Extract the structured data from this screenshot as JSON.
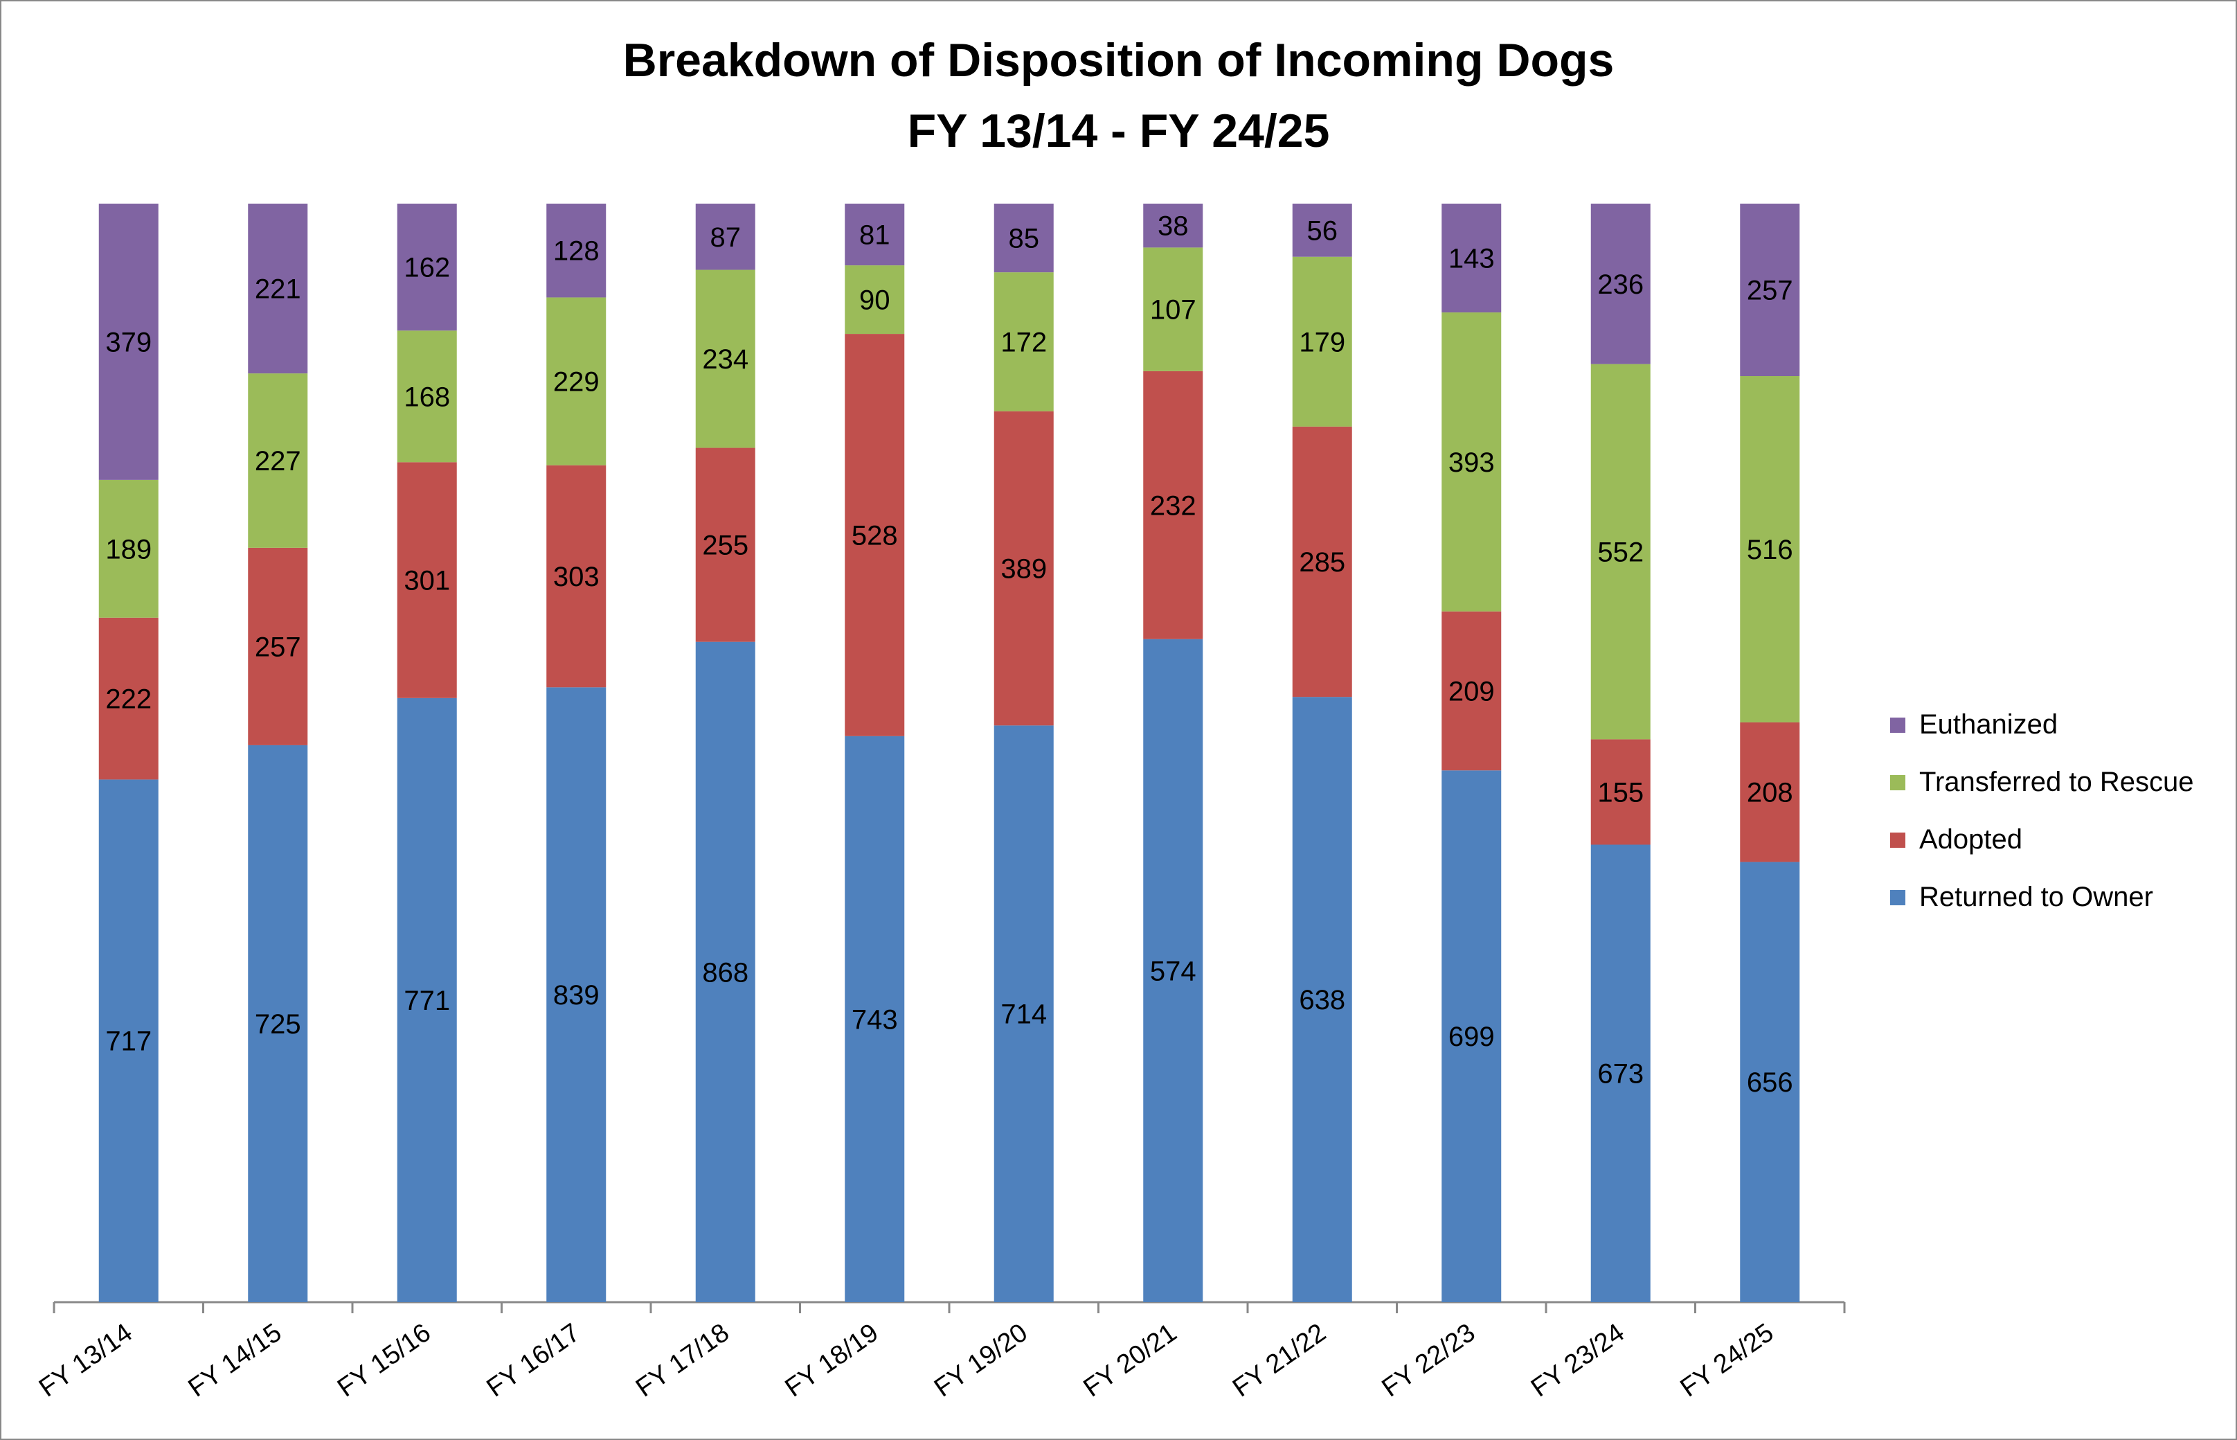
{
  "title": [
    "Breakdown of Disposition of Incoming Dogs",
    "FY 13/14 - FY 24/25"
  ],
  "chart_data": {
    "type": "bar",
    "stacked": true,
    "title": "Breakdown of Disposition of Incoming Dogs FY 13/14 - FY 24/25",
    "categories": [
      "FY 13/14",
      "FY 14/15",
      "FY 15/16",
      "FY 16/17",
      "FY 17/18",
      "FY 18/19",
      "FY 19/20",
      "FY 20/21",
      "FY 21/22",
      "FY 22/23",
      "FY 23/24",
      "FY 24/25"
    ],
    "series": [
      {
        "name": "Returned to Owner",
        "color": "#4F81BD",
        "values": [
          717,
          725,
          771,
          839,
          868,
          743,
          714,
          574,
          638,
          699,
          673,
          656
        ]
      },
      {
        "name": "Adopted",
        "color": "#C0504D",
        "values": [
          222,
          257,
          301,
          303,
          255,
          528,
          389,
          232,
          285,
          209,
          155,
          208
        ]
      },
      {
        "name": "Transferred to Rescue",
        "color": "#9BBB59",
        "values": [
          189,
          227,
          168,
          229,
          234,
          90,
          172,
          107,
          179,
          393,
          552,
          516
        ]
      },
      {
        "name": "Euthanized",
        "color": "#8064A2",
        "values": [
          379,
          221,
          162,
          128,
          87,
          81,
          85,
          38,
          56,
          143,
          236,
          257
        ]
      }
    ],
    "percent_stacked": true,
    "data_labels": true,
    "legend_position": "right",
    "grid": false
  }
}
